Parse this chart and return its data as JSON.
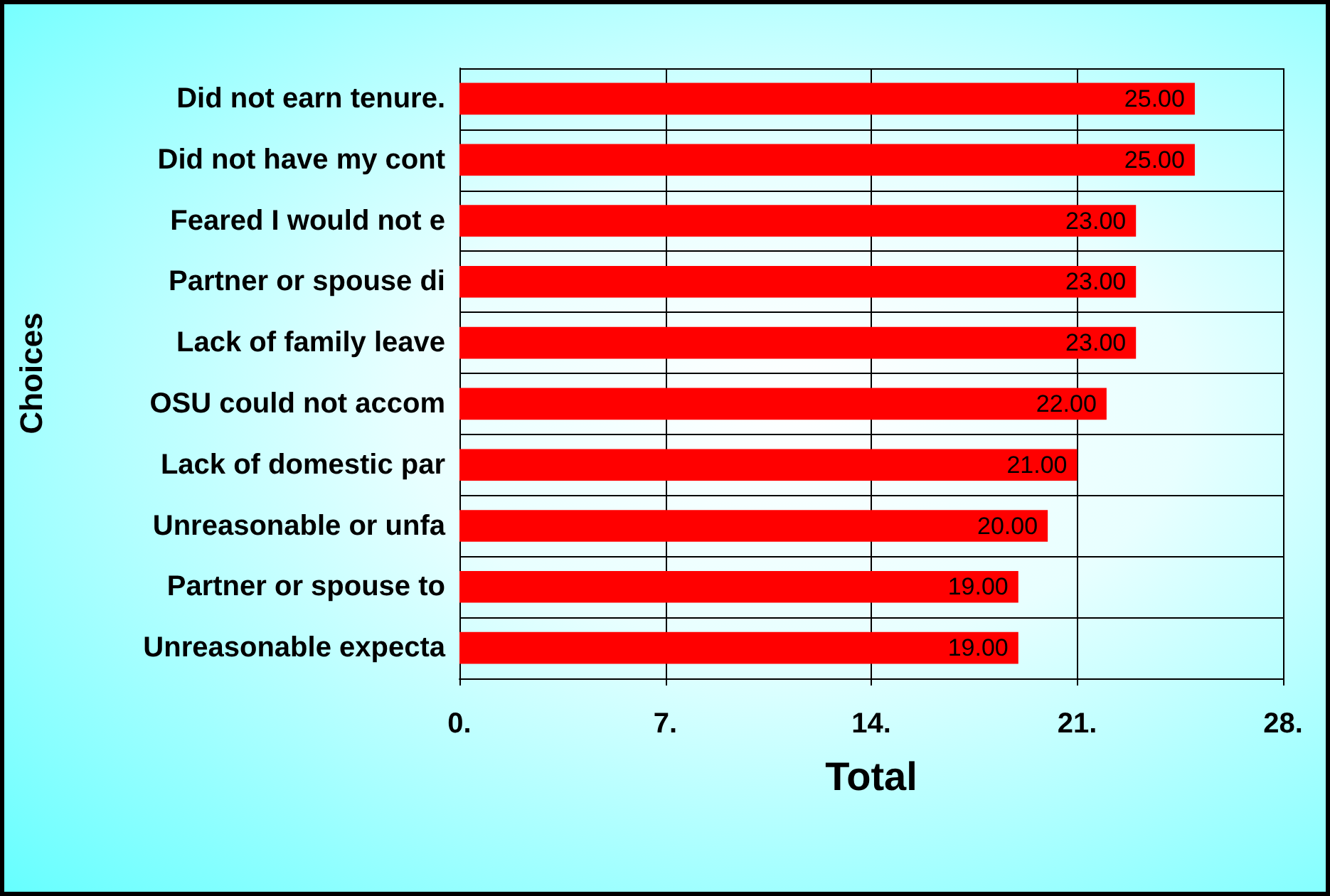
{
  "chart_data": {
    "type": "bar",
    "orientation": "horizontal",
    "categories": [
      "Did not earn tenure.",
      "Did not have my cont",
      "Feared I would not e",
      "Partner or spouse di",
      "Lack of family leave",
      "OSU could not accom",
      "Lack of domestic par",
      "Unreasonable or unfa",
      "Partner or spouse to",
      "Unreasonable expecta"
    ],
    "values": [
      25,
      25,
      23,
      23,
      23,
      22,
      21,
      20,
      19,
      19
    ],
    "value_labels": [
      "25.00",
      "25.00",
      "23.00",
      "23.00",
      "23.00",
      "22.00",
      "21.00",
      "20.00",
      "19.00",
      "19.00"
    ],
    "color": "#ff0000",
    "xlim": [
      0,
      28
    ],
    "xticks": [
      {
        "value": 0,
        "label": "0."
      },
      {
        "value": 7,
        "label": "7."
      },
      {
        "value": 14,
        "label": "14."
      },
      {
        "value": 21,
        "label": "21."
      },
      {
        "value": 28,
        "label": "28."
      }
    ],
    "xlabel": "Total",
    "ylabel": "Choices",
    "grid": true
  }
}
